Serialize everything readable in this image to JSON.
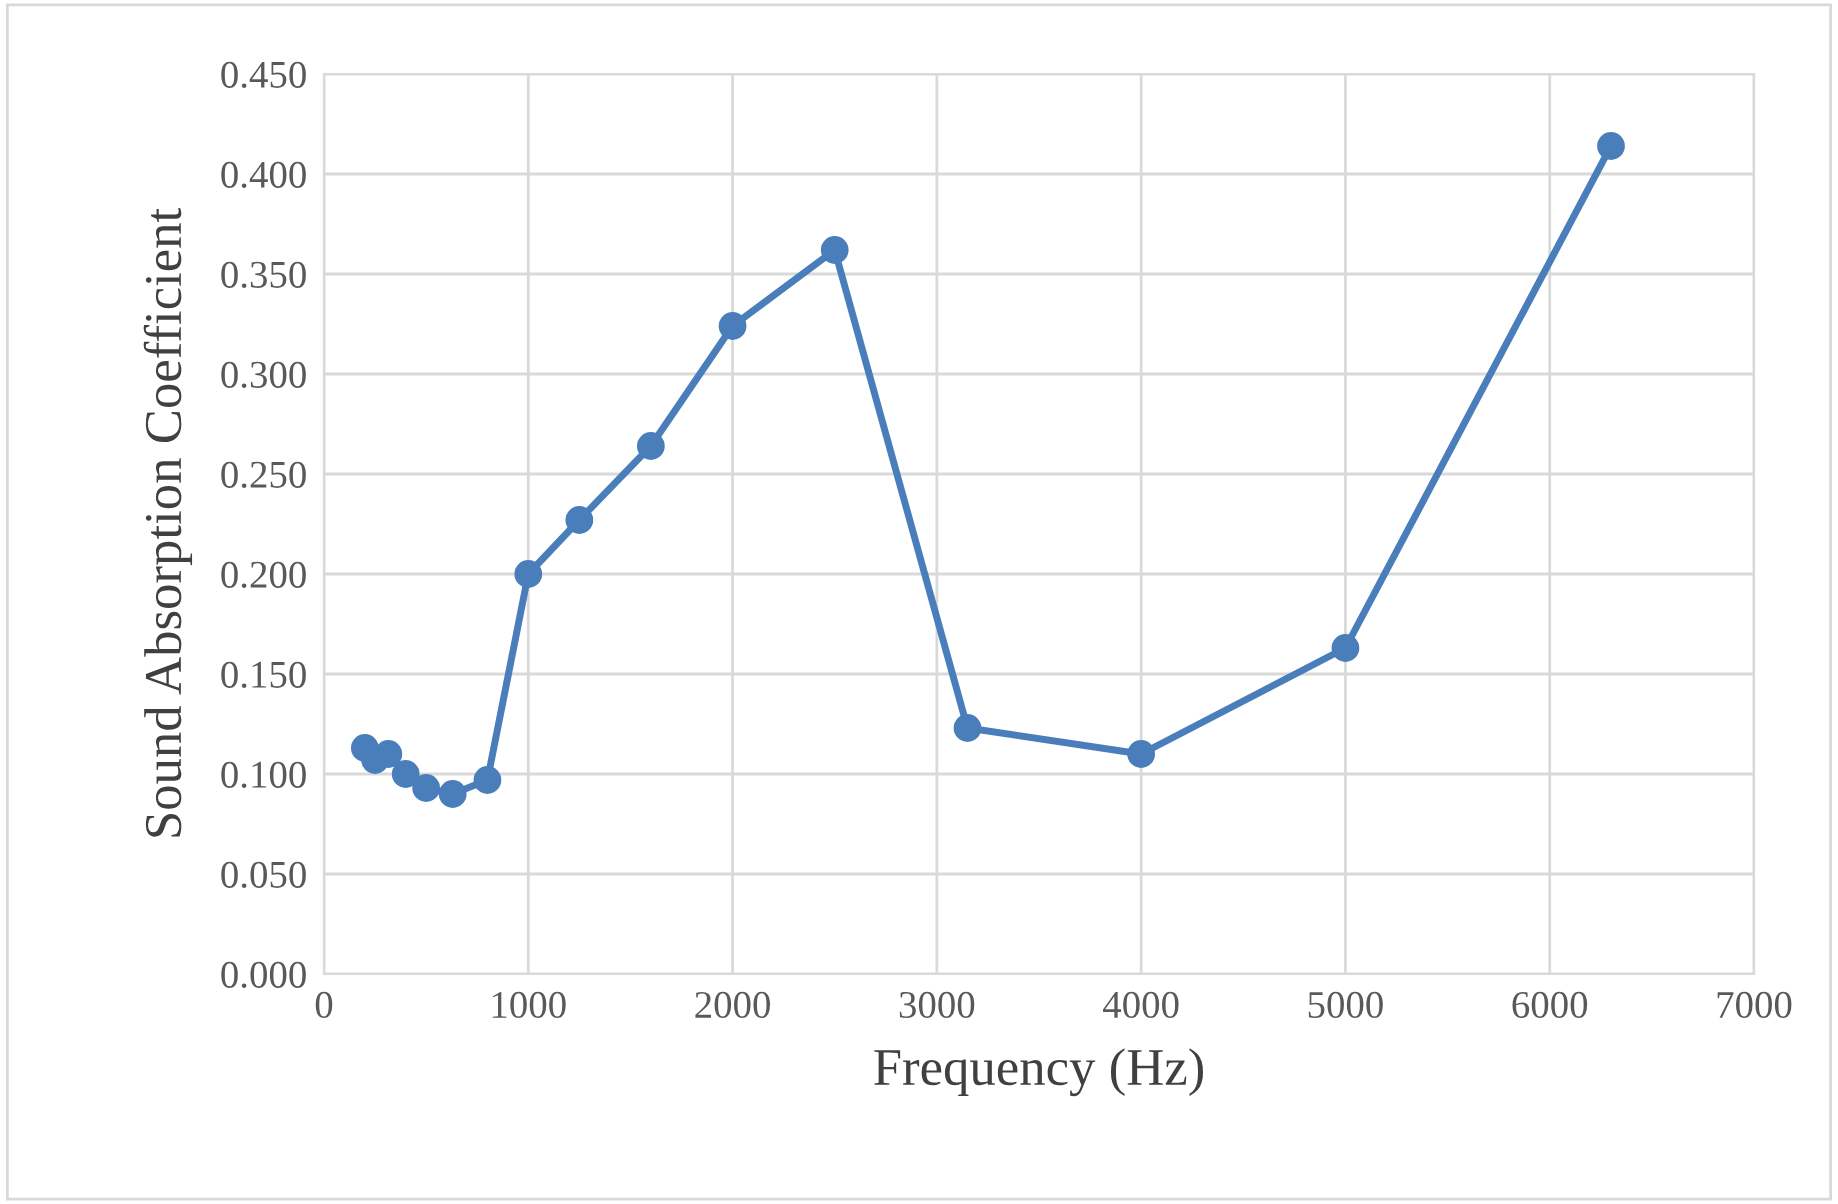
{
  "chart_data": {
    "type": "line",
    "xlabel": "Frequency (Hz)",
    "ylabel": "Sound Absorption Coefficient",
    "x": [
      200,
      250,
      315,
      400,
      500,
      630,
      800,
      1000,
      1250,
      1600,
      2000,
      2500,
      3150,
      4000,
      5000,
      6300
    ],
    "series": [
      {
        "color": "#4a7ebb",
        "values": [
          0.113,
          0.107,
          0.11,
          0.1,
          0.093,
          0.09,
          0.097,
          0.2,
          0.227,
          0.264,
          0.324,
          0.362,
          0.123,
          0.11,
          0.163,
          0.414
        ]
      }
    ],
    "xlim": [
      0,
      7000
    ],
    "xticks": [
      0,
      1000,
      2000,
      3000,
      4000,
      5000,
      6000,
      7000
    ],
    "ylim": [
      0,
      0.45
    ],
    "yticks": [
      {
        "value": 0,
        "label": "0.000"
      },
      {
        "value": 0.05,
        "label": "0.050"
      },
      {
        "value": 0.1,
        "label": "0.100"
      },
      {
        "value": 0.15,
        "label": "0.150"
      },
      {
        "value": 0.2,
        "label": "0.200"
      },
      {
        "value": 0.25,
        "label": "0.250"
      },
      {
        "value": 0.3,
        "label": "0.300"
      },
      {
        "value": 0.35,
        "label": "0.350"
      },
      {
        "value": 0.4,
        "label": "0.400"
      },
      {
        "value": 0.45,
        "label": "0.450"
      }
    ],
    "grid": true,
    "marker": "circle",
    "line_style": "solid"
  }
}
